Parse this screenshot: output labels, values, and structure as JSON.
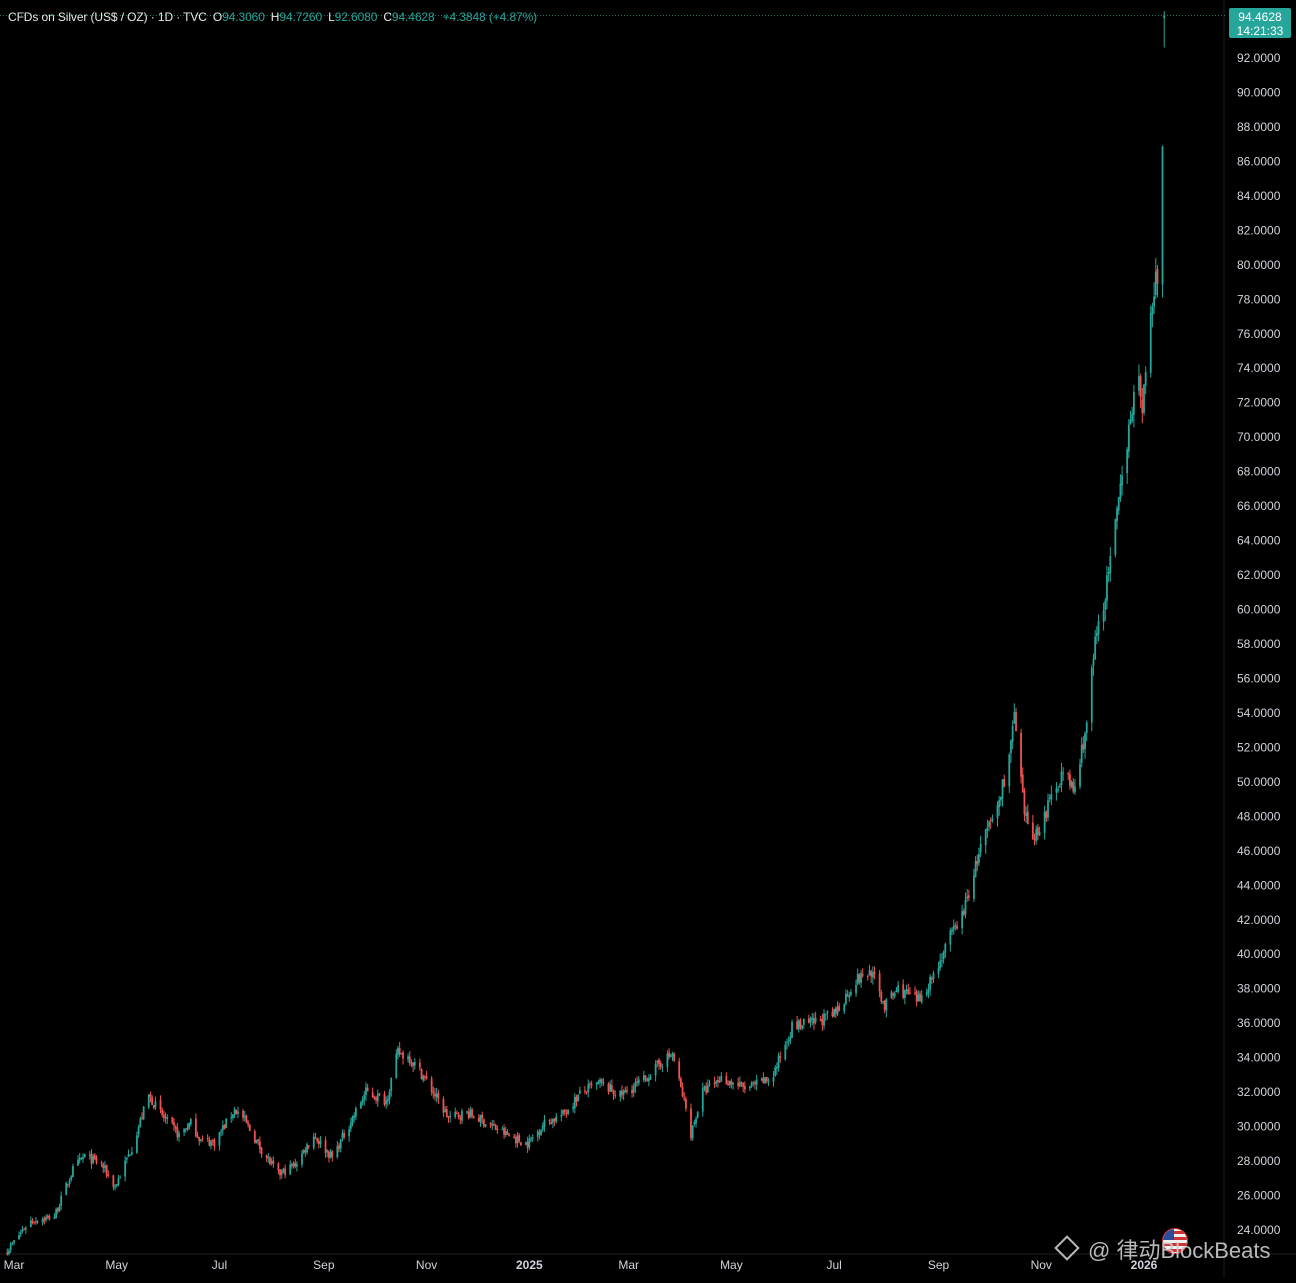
{
  "legend": {
    "symbol": "CFDs on Silver (US$ / OZ) · 1D · TVC",
    "open_label": "O",
    "open": "94.3060",
    "high_label": "H",
    "high": "94.7260",
    "low_label": "L",
    "low": "92.6080",
    "close_label": "C",
    "close": "94.4628",
    "change": "+4.3848 (+4.87%)"
  },
  "price_tag": {
    "price": "94.4628",
    "countdown": "14:21:33"
  },
  "watermark": {
    "text": "@ 律动BlockBeats",
    "icon": "binance-diamond-icon"
  },
  "colors": {
    "background": "#000000",
    "up": "#26a69a",
    "down": "#ef5350",
    "text": "#d1d4dc",
    "price_tag": "#26a69a"
  },
  "chart_data": {
    "type": "line",
    "style": "candlestick",
    "grid": false,
    "ylim": [
      23.0,
      95.0
    ],
    "y_axis_position": "right",
    "y_ticks": [
      "24.0000",
      "26.0000",
      "28.0000",
      "30.0000",
      "32.0000",
      "34.0000",
      "36.0000",
      "38.0000",
      "40.0000",
      "42.0000",
      "44.0000",
      "46.0000",
      "48.0000",
      "50.0000",
      "52.0000",
      "54.0000",
      "56.0000",
      "58.0000",
      "60.0000",
      "62.0000",
      "64.0000",
      "66.0000",
      "68.0000",
      "70.0000",
      "72.0000",
      "74.0000",
      "76.0000",
      "78.0000",
      "80.0000",
      "82.0000",
      "84.0000",
      "86.0000",
      "88.0000",
      "90.0000",
      "92.0000"
    ],
    "x_ticks": [
      {
        "label": "Mar",
        "date": "2024-03-01"
      },
      {
        "label": "May",
        "date": "2024-05-01"
      },
      {
        "label": "Jul",
        "date": "2024-07-01"
      },
      {
        "label": "Sep",
        "date": "2024-09-01"
      },
      {
        "label": "Nov",
        "date": "2024-11-01"
      },
      {
        "label": "2025",
        "date": "2025-01-01",
        "bold": true
      },
      {
        "label": "Mar",
        "date": "2025-03-01"
      },
      {
        "label": "May",
        "date": "2025-05-01"
      },
      {
        "label": "Jul",
        "date": "2025-07-01"
      },
      {
        "label": "Sep",
        "date": "2025-09-01"
      },
      {
        "label": "Nov",
        "date": "2025-11-01"
      },
      {
        "label": "2026",
        "date": "2026-01-01",
        "bold": true
      }
    ],
    "x_range": [
      "2024-02-25",
      "2026-01-15"
    ],
    "last_price": 94.4628,
    "path_dates": [
      "2024-02-26",
      "2024-03-10",
      "2024-03-25",
      "2024-04-05",
      "2024-04-12",
      "2024-04-22",
      "2024-04-30",
      "2024-05-10",
      "2024-05-20",
      "2024-05-29",
      "2024-06-07",
      "2024-06-14",
      "2024-06-20",
      "2024-06-28",
      "2024-07-10",
      "2024-07-15",
      "2024-07-25",
      "2024-08-05",
      "2024-08-15",
      "2024-08-26",
      "2024-09-06",
      "2024-09-18",
      "2024-09-26",
      "2024-10-08",
      "2024-10-15",
      "2024-10-22",
      "2024-10-31",
      "2024-11-14",
      "2024-11-25",
      "2024-12-05",
      "2024-12-19",
      "2024-12-31",
      "2025-01-10",
      "2025-01-21",
      "2025-02-01",
      "2025-02-12",
      "2025-02-24",
      "2025-03-10",
      "2025-03-20",
      "2025-03-27",
      "2025-04-04",
      "2025-04-07",
      "2025-04-14",
      "2025-04-25",
      "2025-05-10",
      "2025-05-25",
      "2025-06-06",
      "2025-06-18",
      "2025-07-01",
      "2025-07-14",
      "2025-07-23",
      "2025-07-31",
      "2025-08-08",
      "2025-08-20",
      "2025-08-29",
      "2025-09-08",
      "2025-09-16",
      "2025-09-26",
      "2025-10-06",
      "2025-10-13",
      "2025-10-16",
      "2025-10-22",
      "2025-10-28",
      "2025-11-04",
      "2025-11-13",
      "2025-11-21",
      "2025-11-28",
      "2025-12-03",
      "2025-12-10",
      "2025-12-17",
      "2025-12-24",
      "2025-12-29",
      "2025-12-31",
      "2026-01-02",
      "2026-01-06",
      "2026-01-09",
      "2026-01-12",
      "2026-01-13"
    ],
    "path_values": [
      22.8,
      24.5,
      24.8,
      27.5,
      28.3,
      27.8,
      26.5,
      28.8,
      31.8,
      30.5,
      29.5,
      30.2,
      29.2,
      29.1,
      31.0,
      30.5,
      28.8,
      27.2,
      27.8,
      29.5,
      28.2,
      30.5,
      32.0,
      31.5,
      34.3,
      34.0,
      32.8,
      30.5,
      30.8,
      30.3,
      29.5,
      29.0,
      30.2,
      30.7,
      32.0,
      32.5,
      31.8,
      32.7,
      33.7,
      34.2,
      31.0,
      29.6,
      32.0,
      32.8,
      32.2,
      32.8,
      35.8,
      36.0,
      36.5,
      38.5,
      39.0,
      37.0,
      38.0,
      37.3,
      38.8,
      41.0,
      42.5,
      46.2,
      48.5,
      51.5,
      53.8,
      48.0,
      46.8,
      48.3,
      50.5,
      49.5,
      53.5,
      58.0,
      61.5,
      66.0,
      71.5,
      73.0,
      72.0,
      73.5,
      77.8,
      79.5,
      86.5,
      94.46
    ]
  }
}
